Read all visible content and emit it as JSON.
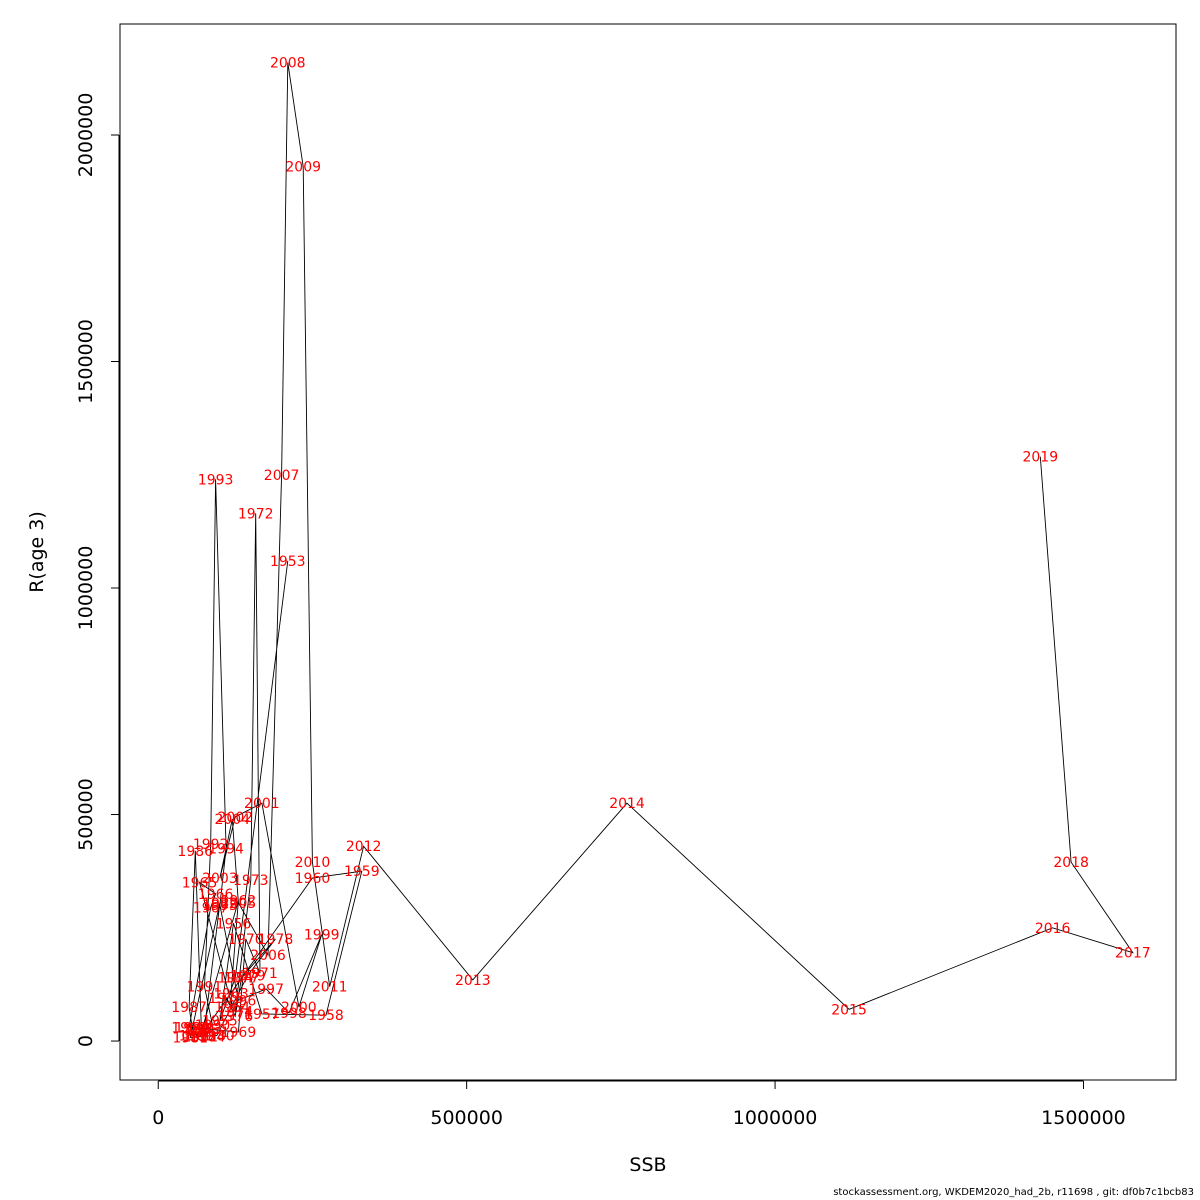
{
  "chart_data": {
    "type": "line",
    "xlabel": "SSB",
    "ylabel": "R(age 3)",
    "xlim": [
      -62000,
      1650000
    ],
    "ylim": [
      -86000,
      2245000
    ],
    "xticks": [
      0,
      500000,
      1000000,
      1500000
    ],
    "xtick_labels": [
      "0",
      "500000",
      "1000000",
      "1500000"
    ],
    "yticks": [
      0,
      500000,
      1000000,
      1500000,
      2000000
    ],
    "ytick_labels": [
      "0",
      "500000",
      "1000000",
      "1500000",
      "2000000"
    ],
    "grid": false,
    "line_color": "#000000",
    "label_color": "#ff0000",
    "points": [
      {
        "year": "1953",
        "x": 210000,
        "y": 1060000
      },
      {
        "year": "1954",
        "x": 125000,
        "y": 140000
      },
      {
        "year": "1955",
        "x": 100000,
        "y": 45000
      },
      {
        "year": "1956",
        "x": 122000,
        "y": 260000
      },
      {
        "year": "1957",
        "x": 168000,
        "y": 60000
      },
      {
        "year": "1958",
        "x": 272000,
        "y": 57000
      },
      {
        "year": "1959",
        "x": 330000,
        "y": 375000
      },
      {
        "year": "1960",
        "x": 250000,
        "y": 360000
      },
      {
        "year": "1961",
        "x": 68000,
        "y": 10000
      },
      {
        "year": "1962",
        "x": 130000,
        "y": 310000
      },
      {
        "year": "1963",
        "x": 118000,
        "y": 105000
      },
      {
        "year": "1964",
        "x": 120000,
        "y": 75000
      },
      {
        "year": "1965",
        "x": 67000,
        "y": 350000
      },
      {
        "year": "1966",
        "x": 93000,
        "y": 325000
      },
      {
        "year": "1967",
        "x": 85000,
        "y": 295000
      },
      {
        "year": "1968",
        "x": 50000,
        "y": 30000
      },
      {
        "year": "1969",
        "x": 130000,
        "y": 20000
      },
      {
        "year": "1970",
        "x": 142000,
        "y": 225000
      },
      {
        "year": "1971",
        "x": 165000,
        "y": 150000
      },
      {
        "year": "1972",
        "x": 158000,
        "y": 1165000
      },
      {
        "year": "1973",
        "x": 150000,
        "y": 355000
      },
      {
        "year": "1974",
        "x": 125000,
        "y": 65000
      },
      {
        "year": "1975",
        "x": 110000,
        "y": 95000
      },
      {
        "year": "1976",
        "x": 125000,
        "y": 55000
      },
      {
        "year": "1977",
        "x": 135000,
        "y": 140000
      },
      {
        "year": "1978",
        "x": 190000,
        "y": 225000
      },
      {
        "year": "1979",
        "x": 145000,
        "y": 145000
      },
      {
        "year": "1980",
        "x": 95000,
        "y": 12000
      },
      {
        "year": "1981",
        "x": 52000,
        "y": 8000
      },
      {
        "year": "1982",
        "x": 100000,
        "y": 305000
      },
      {
        "year": "1983",
        "x": 75000,
        "y": 28000
      },
      {
        "year": "1984",
        "x": 80000,
        "y": 10000
      },
      {
        "year": "1985",
        "x": 70000,
        "y": 25000
      },
      {
        "year": "1986",
        "x": 60000,
        "y": 420000
      },
      {
        "year": "1987",
        "x": 50000,
        "y": 75000
      },
      {
        "year": "1988",
        "x": 55000,
        "y": 30000
      },
      {
        "year": "1989",
        "x": 62000,
        "y": 12000
      },
      {
        "year": "1990",
        "x": 88000,
        "y": 35000
      },
      {
        "year": "1991",
        "x": 75000,
        "y": 120000
      },
      {
        "year": "1992",
        "x": 85000,
        "y": 435000
      },
      {
        "year": "1993",
        "x": 93000,
        "y": 1240000
      },
      {
        "year": "1994",
        "x": 110000,
        "y": 425000
      },
      {
        "year": "1995",
        "x": 100000,
        "y": 300000
      },
      {
        "year": "1996",
        "x": 130000,
        "y": 90000
      },
      {
        "year": "1997",
        "x": 175000,
        "y": 115000
      },
      {
        "year": "1998",
        "x": 212000,
        "y": 62000
      },
      {
        "year": "1999",
        "x": 265000,
        "y": 235000
      },
      {
        "year": "2000",
        "x": 228000,
        "y": 75000
      },
      {
        "year": "2001",
        "x": 168000,
        "y": 525000
      },
      {
        "year": "2002",
        "x": 125000,
        "y": 495000
      },
      {
        "year": "2003",
        "x": 100000,
        "y": 360000
      },
      {
        "year": "2004",
        "x": 120000,
        "y": 490000
      },
      {
        "year": "2005",
        "x": 130000,
        "y": 305000
      },
      {
        "year": "2006",
        "x": 178000,
        "y": 190000
      },
      {
        "year": "2007",
        "x": 200000,
        "y": 1250000
      },
      {
        "year": "2008",
        "x": 210000,
        "y": 2160000
      },
      {
        "year": "2009",
        "x": 235000,
        "y": 1930000
      },
      {
        "year": "2010",
        "x": 250000,
        "y": 395000
      },
      {
        "year": "2011",
        "x": 278000,
        "y": 120000
      },
      {
        "year": "2012",
        "x": 333000,
        "y": 430000
      },
      {
        "year": "2013",
        "x": 510000,
        "y": 135000
      },
      {
        "year": "2014",
        "x": 760000,
        "y": 525000
      },
      {
        "year": "2015",
        "x": 1120000,
        "y": 70000
      },
      {
        "year": "2016",
        "x": 1450000,
        "y": 250000
      },
      {
        "year": "2017",
        "x": 1580000,
        "y": 195000
      },
      {
        "year": "2018",
        "x": 1480000,
        "y": 395000
      },
      {
        "year": "2019",
        "x": 1430000,
        "y": 1290000
      }
    ]
  },
  "footer": {
    "text": "stockassessment.org, WKDEM2020_had_2b, r11698 , git: df0b7c1bcb83"
  }
}
